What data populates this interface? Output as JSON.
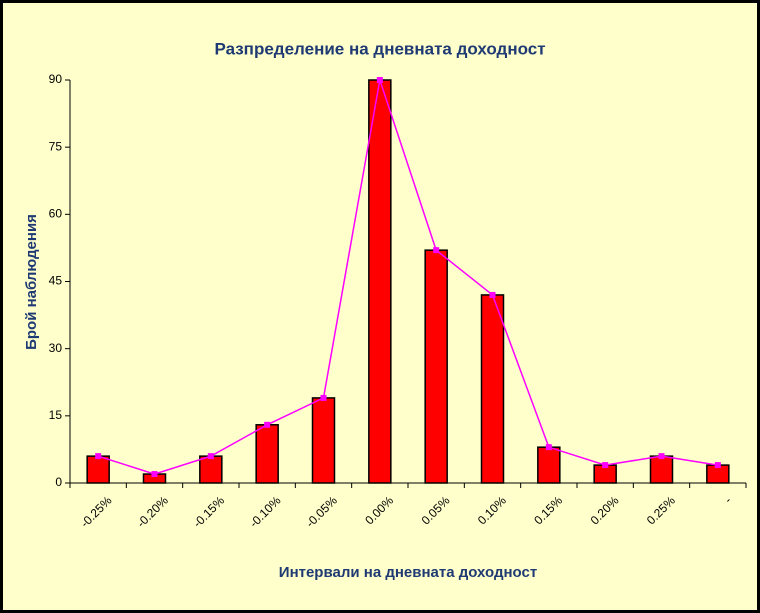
{
  "chart_data": {
    "type": "bar",
    "title": "Разпределение на дневната доходност",
    "x_label": "Интервали на дневната доходност",
    "y_label": "Брой наблюдения",
    "categories": [
      "-0.25%",
      "-0.20%",
      "-0.15%",
      "-0.10%",
      "-0.05%",
      "0.00%",
      "0.05%",
      "0.10%",
      "0.15%",
      "0.20%",
      "0.25%",
      "-"
    ],
    "values": [
      6,
      2,
      6,
      13,
      19,
      90,
      52,
      42,
      8,
      4,
      6,
      4
    ],
    "color": "#ff0000",
    "line_color": "#ff00ff",
    "ylim": [
      0,
      90
    ],
    "yticks": [
      0,
      15,
      30,
      45,
      60,
      75,
      90
    ],
    "grid": false
  }
}
